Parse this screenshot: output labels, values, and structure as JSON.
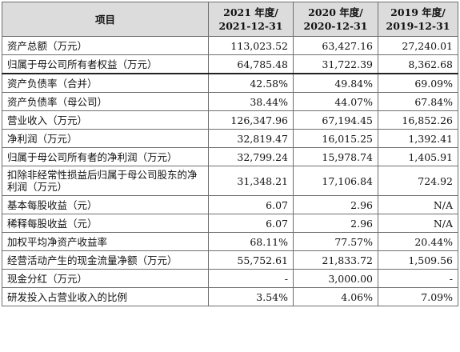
{
  "header": {
    "item": "项目",
    "columns": [
      {
        "line1": "2021 年度/",
        "line2": "2021-12-31"
      },
      {
        "line1": "2020 年度/",
        "line2": "2020-12-31"
      },
      {
        "line1": "2019 年度/",
        "line2": "2019-12-31"
      }
    ]
  },
  "rows": [
    {
      "label": "资产总额（万元）",
      "values": [
        "113,023.52",
        "63,427.16",
        "27,240.01"
      ]
    },
    {
      "label": "归属于母公司所有者权益（万元）",
      "values": [
        "64,785.48",
        "31,722.39",
        "8,362.68"
      ]
    },
    {
      "label": "资产负债率（合并）",
      "values": [
        "42.58%",
        "49.84%",
        "69.09%"
      ]
    },
    {
      "label": "资产负债率（母公司）",
      "values": [
        "38.44%",
        "44.07%",
        "67.84%"
      ]
    },
    {
      "label": "营业收入（万元）",
      "values": [
        "126,347.96",
        "67,194.45",
        "16,852.26"
      ]
    },
    {
      "label": "净利润（万元）",
      "values": [
        "32,819.47",
        "16,015.25",
        "1,392.41"
      ]
    },
    {
      "label": "归属于母公司所有者的净利润（万元）",
      "values": [
        "32,799.24",
        "15,978.74",
        "1,405.91"
      ]
    },
    {
      "label": "扣除非经常性损益后归属于母公司股东的净利润（万元）",
      "values": [
        "31,348.21",
        "17,106.84",
        "724.92"
      ]
    },
    {
      "label": "基本每股收益（元）",
      "values": [
        "6.07",
        "2.96",
        "N/A"
      ]
    },
    {
      "label": "稀释每股收益（元）",
      "values": [
        "6.07",
        "2.96",
        "N/A"
      ]
    },
    {
      "label": "加权平均净资产收益率",
      "values": [
        "68.11%",
        "77.57%",
        "20.44%"
      ]
    },
    {
      "label": "经营活动产生的现金流量净额（万元）",
      "values": [
        "55,752.61",
        "21,833.72",
        "1,509.56"
      ]
    },
    {
      "label": "现金分红（万元）",
      "values": [
        "-",
        "3,000.00",
        "-"
      ]
    },
    {
      "label": "研发投入占营业收入的比例",
      "values": [
        "3.54%",
        "4.06%",
        "7.09%"
      ]
    }
  ]
}
